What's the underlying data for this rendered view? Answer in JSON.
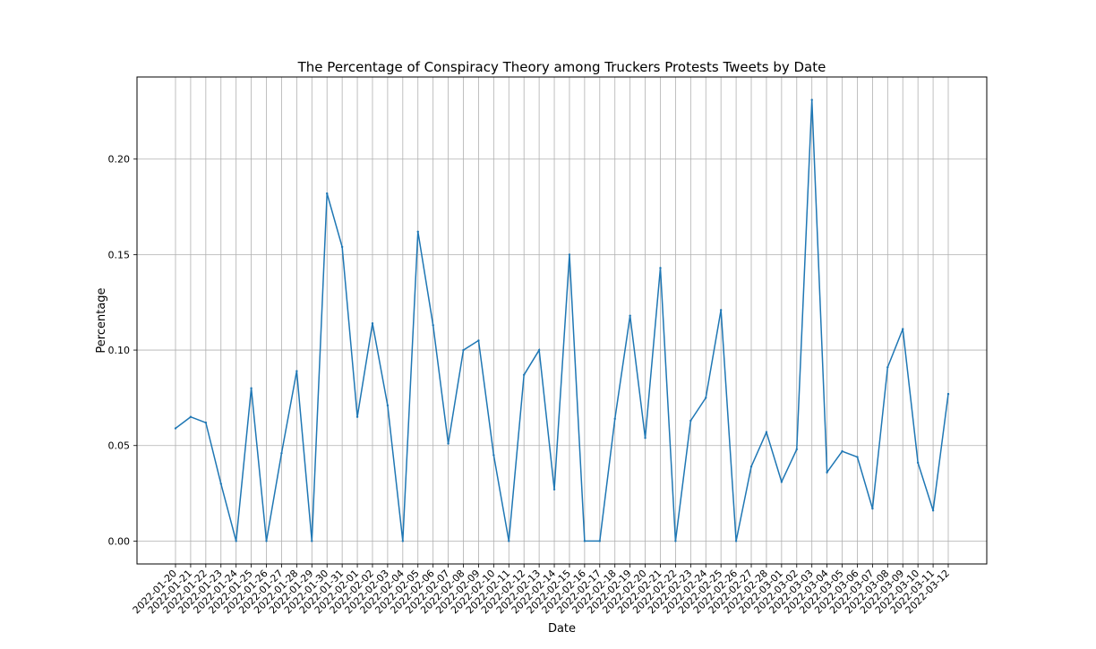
{
  "chart_data": {
    "type": "line",
    "title": "The Percentage of Conspiracy Theory among Truckers Protests Tweets by Date",
    "xlabel": "Date",
    "ylabel": "Percentage",
    "x": [
      "2022-01-20",
      "2022-01-21",
      "2022-01-22",
      "2022-01-23",
      "2022-01-24",
      "2022-01-25",
      "2022-01-26",
      "2022-01-27",
      "2022-01-28",
      "2022-01-29",
      "2022-01-30",
      "2022-01-31",
      "2022-02-01",
      "2022-02-02",
      "2022-02-03",
      "2022-02-04",
      "2022-02-05",
      "2022-02-06",
      "2022-02-07",
      "2022-02-08",
      "2022-02-09",
      "2022-02-10",
      "2022-02-11",
      "2022-02-12",
      "2022-02-13",
      "2022-02-14",
      "2022-02-15",
      "2022-02-16",
      "2022-02-17",
      "2022-02-18",
      "2022-02-19",
      "2022-02-20",
      "2022-02-21",
      "2022-02-22",
      "2022-02-23",
      "2022-02-24",
      "2022-02-25",
      "2022-02-26",
      "2022-02-27",
      "2022-02-28",
      "2022-03-01",
      "2022-03-02",
      "2022-03-03",
      "2022-03-04",
      "2022-03-05",
      "2022-03-06",
      "2022-03-07",
      "2022-03-08",
      "2022-03-09",
      "2022-03-10",
      "2022-03-11",
      "2022-03-12"
    ],
    "series": [
      {
        "values": [
          0.059,
          0.065,
          0.062,
          0.03,
          0.0,
          0.08,
          0.0,
          0.046,
          0.089,
          0.0,
          0.182,
          0.154,
          0.065,
          0.114,
          0.071,
          0.0,
          0.162,
          0.113,
          0.051,
          0.1,
          0.105,
          0.045,
          0.0,
          0.087,
          0.1,
          0.027,
          0.15,
          0.0,
          0.0,
          0.064,
          0.118,
          0.054,
          0.143,
          0.0,
          0.063,
          0.075,
          0.121,
          0.0,
          0.039,
          0.057,
          0.031,
          0.048,
          0.231,
          0.036,
          0.047,
          0.044,
          0.017,
          0.091,
          0.111,
          0.041,
          0.016,
          0.077
        ],
        "color": "#1f77b4"
      }
    ],
    "yticks": [
      "0.00",
      "0.05",
      "0.10",
      "0.15",
      "0.20"
    ],
    "ylim": [
      -0.012,
      0.243
    ],
    "grid": true
  }
}
